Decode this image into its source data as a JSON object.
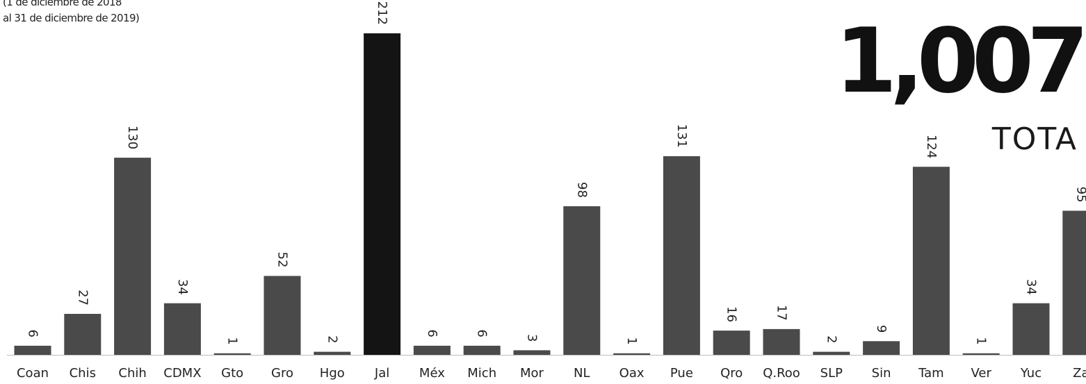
{
  "subtitle_line1": "(1 de diciembre de 2018",
  "subtitle_line2": "al 31 de diciembre de 2019)",
  "total_value": "1,007",
  "total_label": "TOTA",
  "colors": {
    "bar": "#4a4a4a",
    "bar_highlight": "#141414",
    "text": "#222222"
  },
  "chart_data": {
    "type": "bar",
    "title": "",
    "xlabel": "",
    "ylabel": "",
    "ylim": [
      0,
      212
    ],
    "grid": false,
    "highlight_category": "Jal",
    "categories": [
      "Coan",
      "Chis",
      "Chih",
      "CDMX",
      "Gto",
      "Gro",
      "Hgo",
      "Jal",
      "Méx",
      "Mich",
      "Mor",
      "NL",
      "Oax",
      "Pue",
      "Qro",
      "Q.Roo",
      "SLP",
      "Sin",
      "Tam",
      "Ver",
      "Yuc",
      "Za"
    ],
    "values": [
      6,
      27,
      130,
      34,
      1,
      52,
      2,
      212,
      6,
      6,
      3,
      98,
      1,
      131,
      16,
      17,
      2,
      9,
      124,
      1,
      34,
      95
    ]
  }
}
